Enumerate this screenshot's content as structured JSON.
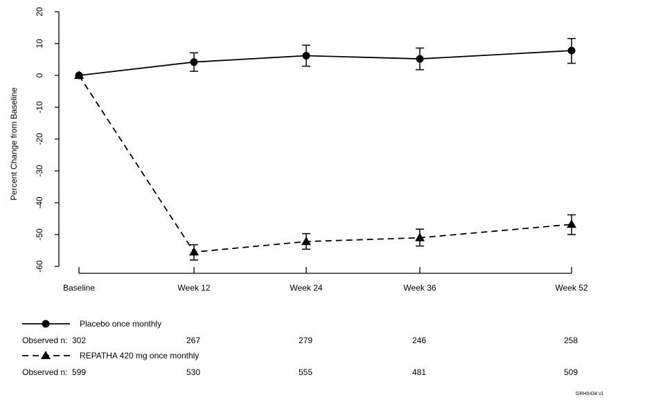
{
  "chart_data": {
    "type": "line",
    "ylabel": "Percent Change from Baseline",
    "ylim": [
      -60,
      20
    ],
    "yticks": [
      20,
      10,
      0,
      -10,
      -20,
      -30,
      -40,
      -50,
      -60
    ],
    "categories": [
      "Baseline",
      "Week 12",
      "Week 24",
      "Week 36",
      "Week 52"
    ],
    "series": [
      {
        "name": "Placebo once monthly",
        "marker": "circle",
        "line_style": "solid",
        "values": [
          0,
          4.2,
          6.2,
          5.2,
          7.8
        ],
        "error_low": [
          0,
          1.3,
          2.9,
          1.8,
          3.8
        ],
        "error_high": [
          0,
          7.1,
          9.5,
          8.6,
          11.6
        ],
        "observed_n": [
          "302",
          "267",
          "279",
          "246",
          "258"
        ]
      },
      {
        "name": "REPATHA 420 mg once monthly",
        "marker": "triangle",
        "line_style": "dashed",
        "values": [
          0,
          -55.5,
          -52.2,
          -51.0,
          -46.8
        ],
        "error_low": [
          0,
          -58.0,
          -54.6,
          -53.6,
          -50.0
        ],
        "error_high": [
          0,
          -53.2,
          -49.7,
          -48.3,
          -43.8
        ],
        "observed_n": [
          "599",
          "530",
          "555",
          "481",
          "509"
        ]
      }
    ],
    "observed_label": "Observed n:",
    "grid": false,
    "legend_position": "bottom",
    "reference_code": "GRH0434 v1"
  }
}
